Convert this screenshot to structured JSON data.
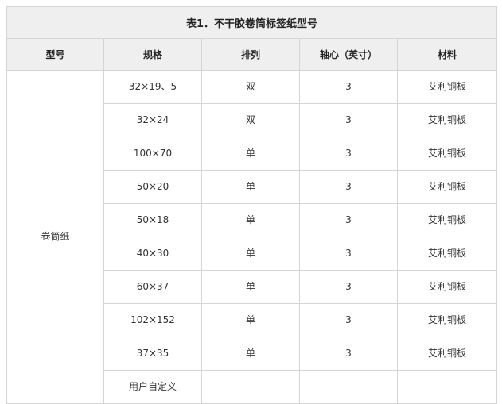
{
  "title": "表1．不干胶卷筒标签纸型号",
  "headers": [
    "型号",
    "规格",
    "排列",
    "轴心（英寸）",
    "材料"
  ],
  "model": "卷筒纸",
  "rows": [
    {
      "spec": "32×19、5",
      "arrangement": "双",
      "core": "3",
      "material": "艾利铜板"
    },
    {
      "spec": "32×24",
      "arrangement": "双",
      "core": "3",
      "material": "艾利铜板"
    },
    {
      "spec": "100×70",
      "arrangement": "单",
      "core": "3",
      "material": "艾利铜板"
    },
    {
      "spec": "50×20",
      "arrangement": "单",
      "core": "3",
      "material": "艾利铜板"
    },
    {
      "spec": "50×18",
      "arrangement": "单",
      "core": "3",
      "material": "艾利铜板"
    },
    {
      "spec": "40×30",
      "arrangement": "单",
      "core": "3",
      "material": "艾利铜板"
    },
    {
      "spec": "60×37",
      "arrangement": "单",
      "core": "3",
      "material": "艾利铜板"
    },
    {
      "spec": "102×152",
      "arrangement": "单",
      "core": "3",
      "material": "艾利铜板"
    },
    {
      "spec": "37×35",
      "arrangement": "单",
      "core": "3",
      "material": "艾利铜板"
    },
    {
      "spec": "用户自定义",
      "arrangement": "",
      "core": "",
      "material": ""
    }
  ]
}
